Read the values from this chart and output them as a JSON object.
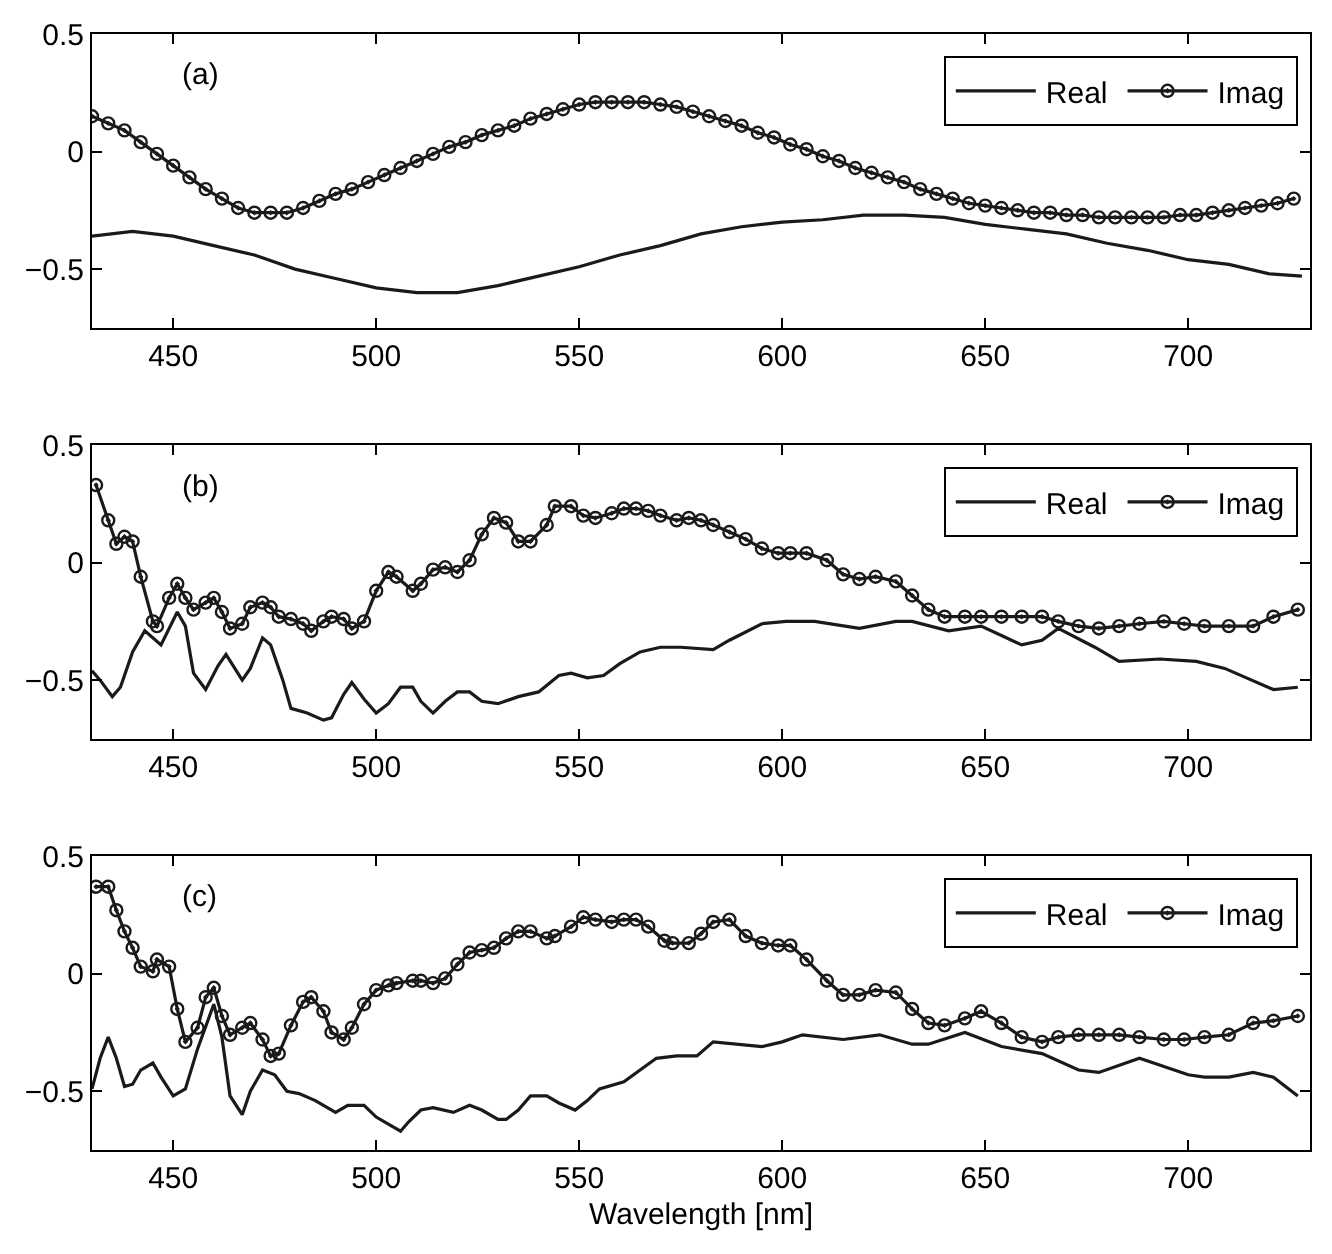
{
  "chart_data": [
    {
      "type": "line",
      "annotations": [
        "(a)"
      ],
      "xlim": [
        430,
        730
      ],
      "ylim": [
        -0.75,
        0.5
      ],
      "xticks": [
        450,
        500,
        550,
        600,
        650,
        700
      ],
      "yticks": [
        -0.5,
        0,
        0.5
      ],
      "legend": "top right",
      "series": [
        {
          "name": "Real",
          "color": "#1a1a1a",
          "marker": "none",
          "x": [
            430,
            440,
            450,
            460,
            470,
            480,
            490,
            500,
            510,
            520,
            530,
            540,
            550,
            560,
            570,
            580,
            590,
            600,
            610,
            620,
            630,
            640,
            650,
            660,
            670,
            680,
            690,
            700,
            710,
            720,
            728
          ],
          "values": [
            -0.36,
            -0.34,
            -0.36,
            -0.4,
            -0.44,
            -0.5,
            -0.54,
            -0.58,
            -0.6,
            -0.6,
            -0.57,
            -0.53,
            -0.49,
            -0.44,
            -0.4,
            -0.35,
            -0.32,
            -0.3,
            -0.29,
            -0.27,
            -0.27,
            -0.28,
            -0.31,
            -0.33,
            -0.35,
            -0.39,
            -0.42,
            -0.46,
            -0.48,
            -0.52,
            -0.53
          ]
        },
        {
          "name": "Imag",
          "color": "#1a1a1a",
          "marker": "circle",
          "x": [
            430,
            434,
            438,
            442,
            446,
            450,
            454,
            458,
            462,
            466,
            470,
            474,
            478,
            482,
            486,
            490,
            494,
            498,
            502,
            506,
            510,
            514,
            518,
            522,
            526,
            530,
            534,
            538,
            542,
            546,
            550,
            554,
            558,
            562,
            566,
            570,
            574,
            578,
            582,
            586,
            590,
            594,
            598,
            602,
            606,
            610,
            614,
            618,
            622,
            626,
            630,
            634,
            638,
            642,
            646,
            650,
            654,
            658,
            662,
            666,
            670,
            674,
            678,
            682,
            686,
            690,
            694,
            698,
            702,
            706,
            710,
            714,
            718,
            722,
            726
          ],
          "values": [
            0.15,
            0.12,
            0.09,
            0.04,
            -0.01,
            -0.06,
            -0.11,
            -0.16,
            -0.2,
            -0.24,
            -0.26,
            -0.26,
            -0.26,
            -0.24,
            -0.21,
            -0.18,
            -0.16,
            -0.13,
            -0.1,
            -0.07,
            -0.04,
            -0.01,
            0.02,
            0.04,
            0.07,
            0.09,
            0.11,
            0.14,
            0.16,
            0.18,
            0.2,
            0.21,
            0.21,
            0.21,
            0.21,
            0.2,
            0.19,
            0.17,
            0.15,
            0.13,
            0.11,
            0.08,
            0.06,
            0.03,
            0.01,
            -0.02,
            -0.04,
            -0.07,
            -0.09,
            -0.11,
            -0.13,
            -0.16,
            -0.18,
            -0.2,
            -0.22,
            -0.23,
            -0.24,
            -0.25,
            -0.26,
            -0.26,
            -0.27,
            -0.27,
            -0.28,
            -0.28,
            -0.28,
            -0.28,
            -0.28,
            -0.27,
            -0.27,
            -0.26,
            -0.25,
            -0.24,
            -0.23,
            -0.22,
            -0.2
          ]
        }
      ]
    },
    {
      "type": "line",
      "annotations": [
        "(b)"
      ],
      "xlim": [
        430,
        730
      ],
      "ylim": [
        -0.75,
        0.5
      ],
      "xticks": [
        450,
        500,
        550,
        600,
        650,
        700
      ],
      "yticks": [
        -0.5,
        0,
        0.5
      ],
      "legend": "top right",
      "series": [
        {
          "name": "Real",
          "color": "#1a1a1a",
          "marker": "none",
          "x": [
            430,
            432,
            435,
            437,
            440,
            443,
            447,
            451,
            453,
            455,
            458,
            461,
            463,
            467,
            469,
            472,
            474,
            477,
            479,
            483,
            487,
            489,
            492,
            494,
            497,
            500,
            503,
            506,
            509,
            511,
            514,
            517,
            520,
            523,
            526,
            530,
            535,
            540,
            545,
            548,
            552,
            556,
            560,
            565,
            570,
            575,
            583,
            587,
            595,
            601,
            608,
            619,
            628,
            632,
            641,
            649,
            654,
            659,
            664,
            668,
            677,
            683,
            693,
            702,
            709,
            721,
            727
          ],
          "values": [
            -0.46,
            -0.5,
            -0.57,
            -0.53,
            -0.38,
            -0.29,
            -0.35,
            -0.21,
            -0.27,
            -0.47,
            -0.54,
            -0.44,
            -0.39,
            -0.5,
            -0.45,
            -0.32,
            -0.35,
            -0.5,
            -0.62,
            -0.64,
            -0.67,
            -0.66,
            -0.56,
            -0.51,
            -0.58,
            -0.64,
            -0.6,
            -0.53,
            -0.53,
            -0.59,
            -0.64,
            -0.59,
            -0.55,
            -0.55,
            -0.59,
            -0.6,
            -0.57,
            -0.55,
            -0.48,
            -0.47,
            -0.49,
            -0.48,
            -0.43,
            -0.38,
            -0.36,
            -0.36,
            -0.37,
            -0.33,
            -0.26,
            -0.25,
            -0.25,
            -0.28,
            -0.25,
            -0.25,
            -0.29,
            -0.27,
            -0.31,
            -0.35,
            -0.33,
            -0.28,
            -0.36,
            -0.42,
            -0.41,
            -0.42,
            -0.45,
            -0.54,
            -0.53
          ]
        },
        {
          "name": "Imag",
          "color": "#1a1a1a",
          "marker": "circle",
          "x": [
            431,
            434,
            436,
            438,
            440,
            442,
            445,
            446,
            449,
            451,
            453,
            455,
            458,
            460,
            462,
            464,
            467,
            469,
            472,
            474,
            476,
            479,
            482,
            484,
            487,
            489,
            492,
            494,
            497,
            500,
            503,
            505,
            509,
            511,
            514,
            517,
            520,
            523,
            526,
            529,
            532,
            535,
            538,
            542,
            544,
            548,
            551,
            554,
            558,
            561,
            564,
            567,
            570,
            574,
            577,
            580,
            583,
            587,
            591,
            595,
            599,
            602,
            606,
            611,
            615,
            619,
            623,
            628,
            632,
            636,
            640,
            645,
            649,
            654,
            659,
            664,
            668,
            673,
            678,
            683,
            688,
            694,
            699,
            704,
            710,
            716,
            721,
            727
          ],
          "values": [
            0.33,
            0.18,
            0.08,
            0.11,
            0.09,
            -0.06,
            -0.25,
            -0.27,
            -0.15,
            -0.09,
            -0.15,
            -0.2,
            -0.17,
            -0.15,
            -0.21,
            -0.28,
            -0.26,
            -0.19,
            -0.17,
            -0.19,
            -0.23,
            -0.24,
            -0.26,
            -0.29,
            -0.25,
            -0.23,
            -0.24,
            -0.28,
            -0.25,
            -0.12,
            -0.04,
            -0.06,
            -0.12,
            -0.09,
            -0.03,
            -0.02,
            -0.04,
            0.01,
            0.12,
            0.19,
            0.17,
            0.09,
            0.09,
            0.16,
            0.24,
            0.24,
            0.2,
            0.19,
            0.21,
            0.23,
            0.23,
            0.22,
            0.2,
            0.18,
            0.19,
            0.18,
            0.16,
            0.13,
            0.1,
            0.06,
            0.04,
            0.04,
            0.04,
            0.01,
            -0.05,
            -0.07,
            -0.06,
            -0.08,
            -0.14,
            -0.2,
            -0.23,
            -0.23,
            -0.23,
            -0.23,
            -0.23,
            -0.23,
            -0.25,
            -0.27,
            -0.28,
            -0.27,
            -0.26,
            -0.25,
            -0.26,
            -0.27,
            -0.27,
            -0.27,
            -0.23,
            -0.2
          ]
        }
      ]
    },
    {
      "type": "line",
      "annotations": [
        "(c)"
      ],
      "xlabel": "Wavelength [nm]",
      "xlim": [
        430,
        730
      ],
      "ylim": [
        -0.75,
        0.5
      ],
      "xticks": [
        450,
        500,
        550,
        600,
        650,
        700
      ],
      "yticks": [
        -0.5,
        0,
        0.5
      ],
      "legend": "top right",
      "series": [
        {
          "name": "Real",
          "color": "#1a1a1a",
          "marker": "none",
          "x": [
            430,
            432,
            434,
            436,
            438,
            440,
            442,
            445,
            447,
            450,
            453,
            456,
            460,
            462,
            464,
            467,
            469,
            472,
            475,
            478,
            481,
            485,
            490,
            493,
            497,
            500,
            503,
            506,
            508,
            511,
            514,
            519,
            523,
            526,
            530,
            532,
            535,
            538,
            542,
            545,
            549,
            552,
            555,
            561,
            565,
            569,
            574,
            579,
            583,
            595,
            600,
            605,
            615,
            624,
            632,
            636,
            645,
            654,
            664,
            673,
            678,
            688,
            700,
            704,
            710,
            716,
            721,
            727
          ],
          "values": [
            -0.49,
            -0.36,
            -0.27,
            -0.36,
            -0.48,
            -0.47,
            -0.41,
            -0.38,
            -0.44,
            -0.52,
            -0.49,
            -0.32,
            -0.13,
            -0.27,
            -0.52,
            -0.6,
            -0.5,
            -0.41,
            -0.43,
            -0.5,
            -0.51,
            -0.54,
            -0.59,
            -0.56,
            -0.56,
            -0.61,
            -0.64,
            -0.67,
            -0.63,
            -0.58,
            -0.57,
            -0.59,
            -0.56,
            -0.58,
            -0.62,
            -0.62,
            -0.58,
            -0.52,
            -0.52,
            -0.55,
            -0.58,
            -0.54,
            -0.49,
            -0.46,
            -0.41,
            -0.36,
            -0.35,
            -0.35,
            -0.29,
            -0.31,
            -0.29,
            -0.26,
            -0.28,
            -0.26,
            -0.3,
            -0.3,
            -0.25,
            -0.31,
            -0.34,
            -0.41,
            -0.42,
            -0.36,
            -0.43,
            -0.44,
            -0.44,
            -0.42,
            -0.44,
            -0.52
          ]
        },
        {
          "name": "Imag",
          "color": "#1a1a1a",
          "marker": "circle",
          "x": [
            431,
            434,
            436,
            438,
            440,
            442,
            445,
            446,
            449,
            451,
            453,
            456,
            458,
            460,
            462,
            464,
            467,
            469,
            472,
            474,
            476,
            479,
            482,
            484,
            487,
            489,
            492,
            494,
            497,
            500,
            503,
            505,
            509,
            511,
            514,
            517,
            520,
            523,
            526,
            529,
            532,
            535,
            538,
            542,
            544,
            548,
            551,
            554,
            558,
            561,
            564,
            567,
            571,
            573,
            577,
            580,
            583,
            587,
            591,
            595,
            599,
            602,
            606,
            611,
            615,
            619,
            623,
            628,
            632,
            636,
            640,
            645,
            649,
            654,
            659,
            664,
            668,
            673,
            678,
            683,
            688,
            694,
            699,
            704,
            710,
            716,
            721,
            727
          ],
          "values": [
            0.37,
            0.37,
            0.27,
            0.18,
            0.11,
            0.03,
            0.01,
            0.06,
            0.03,
            -0.15,
            -0.29,
            -0.23,
            -0.1,
            -0.06,
            -0.18,
            -0.26,
            -0.23,
            -0.21,
            -0.28,
            -0.35,
            -0.34,
            -0.22,
            -0.12,
            -0.1,
            -0.16,
            -0.25,
            -0.28,
            -0.23,
            -0.13,
            -0.07,
            -0.05,
            -0.04,
            -0.03,
            -0.03,
            -0.04,
            -0.02,
            0.04,
            0.09,
            0.1,
            0.11,
            0.15,
            0.18,
            0.18,
            0.15,
            0.16,
            0.2,
            0.24,
            0.23,
            0.22,
            0.23,
            0.23,
            0.2,
            0.14,
            0.13,
            0.13,
            0.17,
            0.22,
            0.23,
            0.16,
            0.13,
            0.12,
            0.12,
            0.06,
            -0.03,
            -0.09,
            -0.09,
            -0.07,
            -0.08,
            -0.15,
            -0.21,
            -0.22,
            -0.19,
            -0.16,
            -0.21,
            -0.27,
            -0.29,
            -0.27,
            -0.26,
            -0.26,
            -0.26,
            -0.27,
            -0.28,
            -0.28,
            -0.27,
            -0.26,
            -0.21,
            -0.2,
            -0.18
          ]
        }
      ]
    }
  ]
}
